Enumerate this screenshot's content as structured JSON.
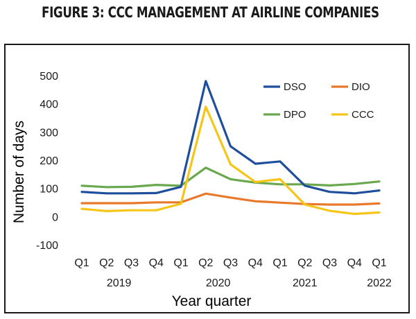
{
  "figure": {
    "title": "FIGURE 3: CCC MANAGEMENT AT AIRLINE COMPANIES"
  },
  "colors": {
    "DSO": "#1f4e9c",
    "DIO": "#e8782a",
    "DPO": "#6aa84f",
    "CCC": "#f5c518"
  },
  "chart_data": {
    "type": "line",
    "xlabel": "Year quarter",
    "ylabel": "Number of days",
    "ylim": [
      -100,
      500
    ],
    "yticks": [
      -100,
      0,
      100,
      200,
      300,
      400,
      500
    ],
    "grid": false,
    "legend_position": "top-right",
    "categories": [
      "Q1",
      "Q2",
      "Q3",
      "Q4",
      "Q1",
      "Q2",
      "Q3",
      "Q4",
      "Q1",
      "Q2",
      "Q3",
      "Q4",
      "Q1"
    ],
    "year_labels": [
      {
        "label": "2019",
        "under_index": 1.5
      },
      {
        "label": "2020",
        "under_index": 5.5
      },
      {
        "label": "2021",
        "under_index": 9.0
      },
      {
        "label": "2022",
        "under_index": 12.0
      }
    ],
    "series": [
      {
        "name": "DSO",
        "values": [
          90,
          85,
          85,
          86,
          108,
          483,
          252,
          190,
          198,
          112,
          90,
          85,
          95
        ]
      },
      {
        "name": "DIO",
        "values": [
          50,
          50,
          50,
          53,
          53,
          84,
          70,
          57,
          52,
          47,
          45,
          45,
          49
        ]
      },
      {
        "name": "DPO",
        "values": [
          112,
          107,
          108,
          115,
          112,
          176,
          135,
          123,
          117,
          117,
          113,
          118,
          127
        ]
      },
      {
        "name": "CCC",
        "values": [
          30,
          22,
          25,
          25,
          48,
          392,
          188,
          125,
          135,
          45,
          23,
          12,
          17
        ]
      }
    ]
  }
}
